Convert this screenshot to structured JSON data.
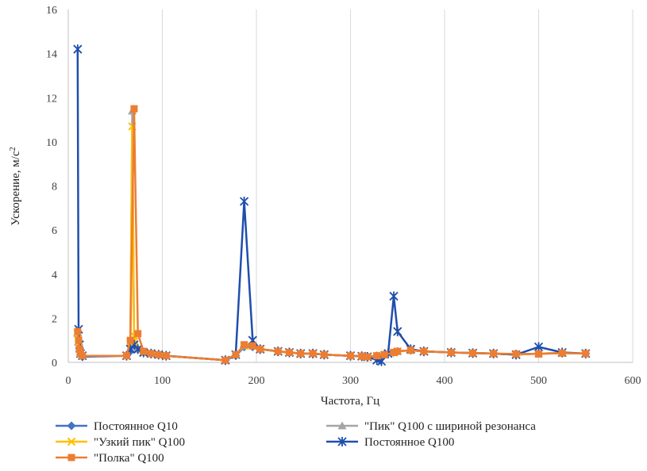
{
  "chart_data": {
    "type": "line",
    "xlabel": "Частота, Гц",
    "ylabel": "Ускорение, м/с",
    "ylabel_sup": "2",
    "xlim": [
      0,
      600
    ],
    "ylim": [
      0,
      16
    ],
    "xticks": [
      0,
      100,
      200,
      300,
      400,
      500,
      600
    ],
    "yticks": [
      0,
      2,
      4,
      6,
      8,
      10,
      12,
      14,
      16
    ],
    "grid": "vertical",
    "legend": "bottom",
    "series": [
      {
        "name": "Постоянное Q10",
        "color": "#4472C4",
        "marker": "diamond",
        "x": [
          10,
          11,
          12,
          13,
          15,
          62,
          66,
          70,
          74,
          80,
          88,
          96,
          104,
          167,
          178,
          187,
          196,
          204,
          223,
          235,
          247,
          260,
          272,
          300,
          312,
          318,
          328,
          336,
          346,
          350,
          364,
          378,
          407,
          430,
          452,
          476,
          500,
          525,
          550
        ],
        "y": [
          1.2,
          0.8,
          0.5,
          0.35,
          0.25,
          0.3,
          0.5,
          0.8,
          0.6,
          0.45,
          0.4,
          0.35,
          0.3,
          0.1,
          0.3,
          0.7,
          0.7,
          0.6,
          0.5,
          0.45,
          0.4,
          0.4,
          0.35,
          0.3,
          0.28,
          0.25,
          0.3,
          0.35,
          0.45,
          0.5,
          0.55,
          0.5,
          0.45,
          0.42,
          0.4,
          0.35,
          0.4,
          0.42,
          0.4
        ]
      },
      {
        "name": "\"Пик\" Q100 с шириной резонанса",
        "color": "#A5A5A5",
        "marker": "triangle",
        "x": [
          10,
          11,
          12,
          13,
          15,
          62,
          66,
          68,
          70,
          74,
          80,
          88,
          96,
          104,
          167,
          178,
          187,
          196,
          204,
          223,
          235,
          247,
          260,
          272,
          300,
          312,
          318,
          328,
          336,
          346,
          350,
          364,
          378,
          407,
          430,
          452,
          476,
          500,
          525,
          550
        ],
        "y": [
          1.3,
          0.9,
          0.6,
          0.4,
          0.3,
          0.3,
          0.9,
          11.4,
          1.0,
          0.6,
          0.45,
          0.4,
          0.35,
          0.3,
          0.1,
          0.35,
          0.75,
          0.75,
          0.6,
          0.5,
          0.45,
          0.4,
          0.4,
          0.35,
          0.3,
          0.28,
          0.25,
          0.3,
          0.35,
          0.45,
          0.5,
          0.55,
          0.5,
          0.45,
          0.42,
          0.4,
          0.35,
          0.4,
          0.42,
          0.4
        ]
      },
      {
        "name": "\"Узкий пик\" Q100",
        "color": "#FFC000",
        "marker": "x",
        "x": [
          10,
          11,
          12,
          13,
          15,
          62,
          66,
          68,
          70,
          74,
          80,
          88,
          96,
          104,
          167,
          178,
          187,
          196,
          204,
          223,
          235,
          247,
          260,
          272,
          300,
          312,
          318,
          328,
          336,
          346,
          350,
          364,
          378,
          407,
          430,
          452,
          476,
          500,
          525,
          550
        ],
        "y": [
          1.3,
          0.9,
          0.6,
          0.4,
          0.3,
          0.3,
          0.9,
          10.7,
          1.2,
          0.6,
          0.45,
          0.4,
          0.35,
          0.3,
          0.1,
          0.35,
          0.75,
          0.75,
          0.6,
          0.5,
          0.45,
          0.4,
          0.4,
          0.35,
          0.3,
          0.28,
          0.25,
          0.3,
          0.35,
          0.45,
          0.5,
          0.55,
          0.5,
          0.45,
          0.42,
          0.4,
          0.35,
          0.4,
          0.42,
          0.4
        ]
      },
      {
        "name": "Постоянное Q100",
        "color": "#1F4EAD",
        "marker": "star",
        "x": [
          10,
          11,
          12,
          13,
          15,
          62,
          66,
          70,
          74,
          80,
          88,
          96,
          104,
          167,
          178,
          187,
          196,
          204,
          223,
          235,
          247,
          260,
          272,
          300,
          312,
          318,
          328,
          333,
          340,
          346,
          350,
          364,
          378,
          407,
          430,
          452,
          476,
          500,
          525,
          550
        ],
        "y": [
          14.2,
          1.5,
          0.8,
          0.4,
          0.3,
          0.3,
          0.6,
          0.8,
          0.6,
          0.45,
          0.4,
          0.35,
          0.3,
          0.1,
          0.35,
          7.3,
          1.0,
          0.6,
          0.5,
          0.45,
          0.4,
          0.4,
          0.35,
          0.3,
          0.28,
          0.25,
          0.1,
          0.05,
          0.4,
          3.0,
          1.4,
          0.6,
          0.5,
          0.45,
          0.42,
          0.4,
          0.35,
          0.7,
          0.45,
          0.4
        ]
      },
      {
        "name": "\"Полка\" Q100",
        "color": "#ED7D31",
        "marker": "square",
        "x": [
          10,
          11,
          12,
          13,
          15,
          62,
          66,
          70,
          74,
          80,
          88,
          96,
          104,
          167,
          178,
          187,
          196,
          204,
          223,
          235,
          247,
          260,
          272,
          300,
          312,
          318,
          328,
          336,
          346,
          350,
          364,
          378,
          407,
          430,
          452,
          476,
          500,
          525,
          550
        ],
        "y": [
          1.4,
          1.0,
          0.6,
          0.4,
          0.3,
          0.3,
          1.0,
          11.5,
          1.3,
          0.5,
          0.4,
          0.35,
          0.3,
          0.1,
          0.35,
          0.8,
          0.75,
          0.6,
          0.5,
          0.45,
          0.4,
          0.4,
          0.35,
          0.3,
          0.28,
          0.25,
          0.3,
          0.35,
          0.45,
          0.5,
          0.55,
          0.5,
          0.45,
          0.42,
          0.4,
          0.38,
          0.38,
          0.42,
          0.4
        ]
      }
    ]
  }
}
